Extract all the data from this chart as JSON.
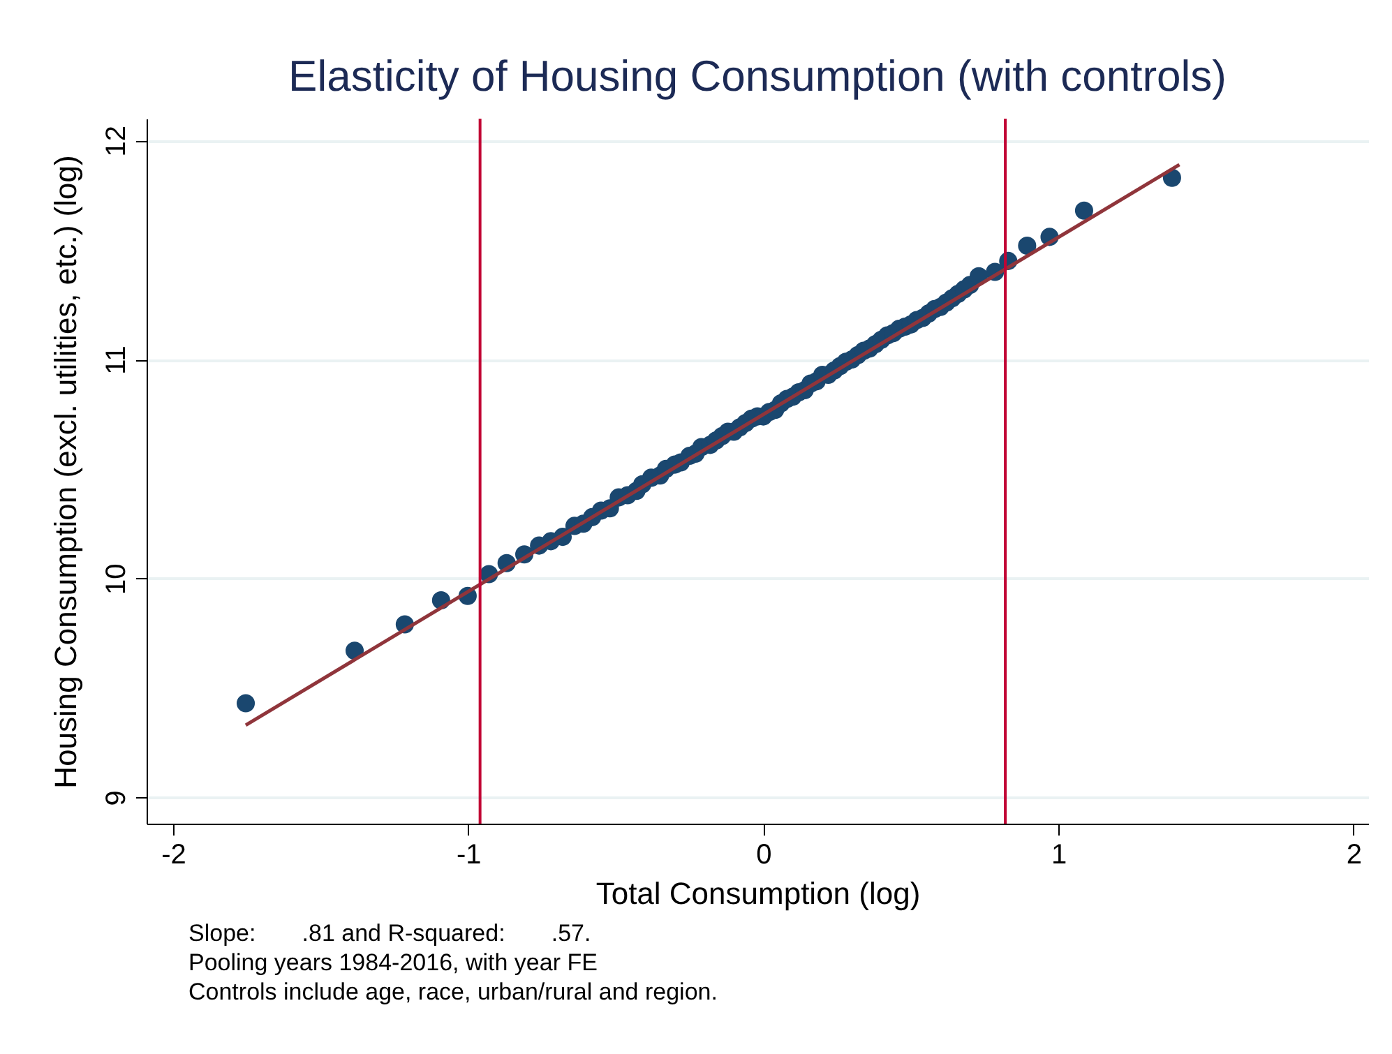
{
  "chart_data": {
    "type": "scatter",
    "title": "Elasticity of Housing Consumption (with controls)",
    "xlabel": "Total Consumption (log)",
    "ylabel": "Housing Consumption (excl. utilities, etc.) (log)",
    "annotations": [
      "Slope:       .81 and R-squared:       .57.",
      "Pooling years 1984-2016, with year FE",
      "Controls include age, race, urban/rural and region."
    ],
    "xlim": [
      -2.09,
      2.05
    ],
    "xticks": [
      -2,
      -1,
      0,
      1,
      2
    ],
    "ylim": [
      8.88,
      12.1
    ],
    "yticks": [
      9,
      10,
      11,
      12
    ],
    "grid": "y",
    "ref_lines": [
      {
        "axis": "x",
        "value": -0.96,
        "color": "#c10534"
      },
      {
        "axis": "x",
        "value": 0.82,
        "color": "#c10534"
      }
    ],
    "series": [
      {
        "marker": "circle",
        "color": "#1a476f",
        "x": [
          -1.754,
          -1.385,
          -1.215,
          -1.092,
          -1.002,
          -0.93,
          -0.87,
          -0.81,
          -0.76,
          -0.72,
          -0.68,
          -0.64,
          -0.61,
          -0.58,
          -0.55,
          -0.52,
          -0.49,
          -0.46,
          -0.43,
          -0.41,
          -0.38,
          -0.35,
          -0.33,
          -0.3,
          -0.28,
          -0.25,
          -0.23,
          -0.21,
          -0.18,
          -0.16,
          -0.14,
          -0.12,
          -0.1,
          -0.08,
          -0.06,
          -0.04,
          -0.02,
          0,
          0.02,
          0.04,
          0.06,
          0.08,
          0.1,
          0.12,
          0.14,
          0.16,
          0.18,
          0.2,
          0.22,
          0.24,
          0.26,
          0.28,
          0.3,
          0.32,
          0.34,
          0.36,
          0.38,
          0.4,
          0.42,
          0.44,
          0.46,
          0.48,
          0.5,
          0.52,
          0.54,
          0.56,
          0.58,
          0.6,
          0.62,
          0.64,
          0.66,
          0.68,
          0.7,
          0.73,
          0.785,
          0.83,
          0.894,
          0.97,
          1.087,
          1.385
        ],
        "values": [
          9.43,
          9.67,
          9.79,
          9.9,
          9.92,
          10.02,
          10.07,
          10.11,
          10.15,
          10.17,
          10.19,
          10.24,
          10.25,
          10.28,
          10.31,
          10.32,
          10.37,
          10.38,
          10.4,
          10.43,
          10.46,
          10.47,
          10.5,
          10.52,
          10.53,
          10.56,
          10.57,
          10.6,
          10.61,
          10.63,
          10.65,
          10.67,
          10.67,
          10.69,
          10.71,
          10.73,
          10.74,
          10.74,
          10.76,
          10.77,
          10.8,
          10.82,
          10.83,
          10.85,
          10.86,
          10.89,
          10.9,
          10.93,
          10.93,
          10.95,
          10.97,
          10.99,
          11,
          11.02,
          11.04,
          11.05,
          11.07,
          11.09,
          11.11,
          11.12,
          11.14,
          11.15,
          11.16,
          11.18,
          11.19,
          11.21,
          11.23,
          11.24,
          11.26,
          11.28,
          11.3,
          11.32,
          11.34,
          11.38,
          11.4,
          11.45,
          11.52,
          11.56,
          11.68,
          11.83
        ]
      },
      {
        "type": "line",
        "color": "#90353b",
        "x": [
          -1.754,
          1.41
        ],
        "values": [
          9.33,
          11.89
        ]
      }
    ]
  }
}
